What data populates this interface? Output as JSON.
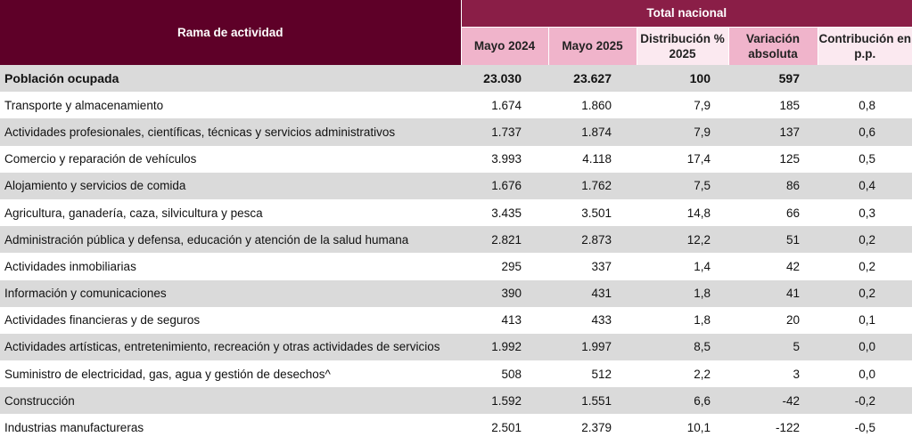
{
  "header": {
    "branch_label": "Rama de actividad",
    "total_label": "Total nacional",
    "columns": [
      "Mayo 2024",
      "Mayo 2025",
      "Distribución % 2025",
      "Variación absoluta",
      "Contribución en p.p."
    ]
  },
  "rows": [
    {
      "label": "Población ocupada",
      "v1": "23.030",
      "v2": "23.627",
      "dist": "100",
      "var": "597",
      "contrib": ""
    },
    {
      "label": "Transporte y almacenamiento",
      "v1": "1.674",
      "v2": "1.860",
      "dist": "7,9",
      "var": "185",
      "contrib": "0,8"
    },
    {
      "label": "Actividades profesionales, científicas, técnicas y servicios administrativos",
      "v1": "1.737",
      "v2": "1.874",
      "dist": "7,9",
      "var": "137",
      "contrib": "0,6"
    },
    {
      "label": "Comercio y reparación de vehículos",
      "v1": "3.993",
      "v2": "4.118",
      "dist": "17,4",
      "var": "125",
      "contrib": "0,5"
    },
    {
      "label": "Alojamiento y servicios de comida",
      "v1": "1.676",
      "v2": "1.762",
      "dist": "7,5",
      "var": "86",
      "contrib": "0,4"
    },
    {
      "label": "Agricultura, ganadería, caza, silvicultura y pesca",
      "v1": "3.435",
      "v2": "3.501",
      "dist": "14,8",
      "var": "66",
      "contrib": "0,3"
    },
    {
      "label": "Administración pública y defensa, educación y atención de la salud humana",
      "v1": "2.821",
      "v2": "2.873",
      "dist": "12,2",
      "var": "51",
      "contrib": "0,2"
    },
    {
      "label": "Actividades inmobiliarias",
      "v1": "295",
      "v2": "337",
      "dist": "1,4",
      "var": "42",
      "contrib": "0,2"
    },
    {
      "label": "Información y comunicaciones",
      "v1": "390",
      "v2": "431",
      "dist": "1,8",
      "var": "41",
      "contrib": "0,2"
    },
    {
      "label": "Actividades financieras y de seguros",
      "v1": "413",
      "v2": "433",
      "dist": "1,8",
      "var": "20",
      "contrib": "0,1"
    },
    {
      "label": "Actividades artísticas, entretenimiento, recreación y otras actividades de servicios",
      "v1": "1.992",
      "v2": "1.997",
      "dist": "8,5",
      "var": "5",
      "contrib": "0,0"
    },
    {
      "label": "Suministro de electricidad, gas, agua y gestión de desechos^",
      "v1": "508",
      "v2": "512",
      "dist": "2,2",
      "var": "3",
      "contrib": "0,0"
    },
    {
      "label": "Construcción",
      "v1": "1.592",
      "v2": "1.551",
      "dist": "6,6",
      "var": "-42",
      "contrib": "-0,2"
    },
    {
      "label": "Industrias manufactureras",
      "v1": "2.501",
      "v2": "2.379",
      "dist": "10,1",
      "var": "-122",
      "contrib": "-0,5"
    }
  ]
}
